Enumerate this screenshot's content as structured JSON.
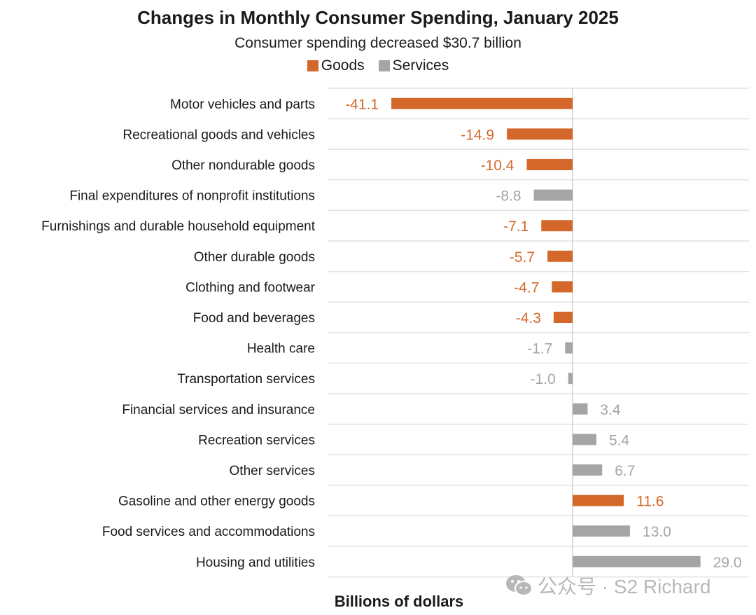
{
  "chart_data": {
    "type": "bar",
    "orientation": "horizontal",
    "title": "Changes in Monthly Consumer Spending, January 2025",
    "subtitle": "Consumer spending decreased $30.7 billion",
    "xlabel": "Billions of dollars",
    "ylabel": "",
    "legend": {
      "placement": "top-center",
      "entries": [
        {
          "name": "Goods",
          "color": "#d4682a"
        },
        {
          "name": "Services",
          "color": "#a5a5a5"
        }
      ]
    },
    "grid": true,
    "xlim": [
      -45,
      30
    ],
    "categories": [
      {
        "label": "Motor vehicles and parts",
        "value": -41.1,
        "value_label": "-41.1",
        "group": "Goods"
      },
      {
        "label": "Recreational goods and vehicles",
        "value": -14.9,
        "value_label": "-14.9",
        "group": "Goods"
      },
      {
        "label": "Other nondurable goods",
        "value": -10.4,
        "value_label": "-10.4",
        "group": "Goods"
      },
      {
        "label": "Final expenditures of nonprofit institutions",
        "value": -8.8,
        "value_label": "-8.8",
        "group": "Services"
      },
      {
        "label": "Furnishings and durable household equipment",
        "value": -7.1,
        "value_label": "-7.1",
        "group": "Goods"
      },
      {
        "label": "Other durable goods",
        "value": -5.7,
        "value_label": "-5.7",
        "group": "Goods"
      },
      {
        "label": "Clothing and footwear",
        "value": -4.7,
        "value_label": "-4.7",
        "group": "Goods"
      },
      {
        "label": "Food and beverages",
        "value": -4.3,
        "value_label": "-4.3",
        "group": "Goods"
      },
      {
        "label": "Health care",
        "value": -1.7,
        "value_label": "-1.7",
        "group": "Services"
      },
      {
        "label": "Transportation services",
        "value": -1.0,
        "value_label": "-1.0",
        "group": "Services"
      },
      {
        "label": "Financial services and insurance",
        "value": 3.4,
        "value_label": "3.4",
        "group": "Services"
      },
      {
        "label": "Recreation services",
        "value": 5.4,
        "value_label": "5.4",
        "group": "Services"
      },
      {
        "label": "Other services",
        "value": 6.7,
        "value_label": "6.7",
        "group": "Services"
      },
      {
        "label": "Gasoline and other energy goods",
        "value": 11.6,
        "value_label": "11.6",
        "group": "Goods"
      },
      {
        "label": "Food services and accommodations",
        "value": 13.0,
        "value_label": "13.0",
        "group": "Services"
      },
      {
        "label": "Housing and utilities",
        "value": 29.0,
        "value_label": "29.0",
        "group": "Services"
      }
    ]
  },
  "watermark": {
    "icon": "wechat-icon",
    "text": "公众号 · S2 Richard"
  }
}
